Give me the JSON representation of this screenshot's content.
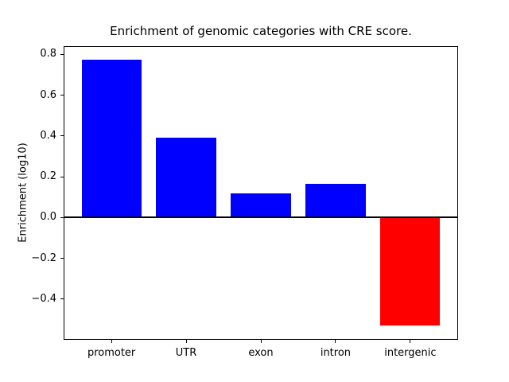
{
  "figure": {
    "background_color": "#ffffff",
    "text_color": "#000000"
  },
  "chart_data": {
    "type": "bar",
    "title": "Enrichment of genomic categories with CRE score.",
    "ylabel": "Enrichment (log10)",
    "xlabel": "",
    "categories": [
      "promoter",
      "UTR",
      "exon",
      "intron",
      "intergenic"
    ],
    "values": [
      0.775,
      0.39,
      0.12,
      0.165,
      -0.53
    ],
    "positive_color": "#0000ff",
    "negative_color": "#ff0000",
    "bar_width": 0.8,
    "ylim": [
      -0.6,
      0.84
    ],
    "xlim": [
      -0.64,
      4.64
    ],
    "yticks": [
      {
        "value": 0.8,
        "label": "0.8"
      },
      {
        "value": 0.6,
        "label": "0.6"
      },
      {
        "value": 0.4,
        "label": "0.4"
      },
      {
        "value": 0.2,
        "label": "0.2"
      },
      {
        "value": 0.0,
        "label": "0.0"
      },
      {
        "value": -0.2,
        "label": "−0.2"
      },
      {
        "value": -0.4,
        "label": "−0.4"
      }
    ],
    "zero_line": {
      "value": 0.0,
      "color": "#000000",
      "width": 2
    },
    "grid": false,
    "legend": false,
    "spine_color": "#000000"
  }
}
